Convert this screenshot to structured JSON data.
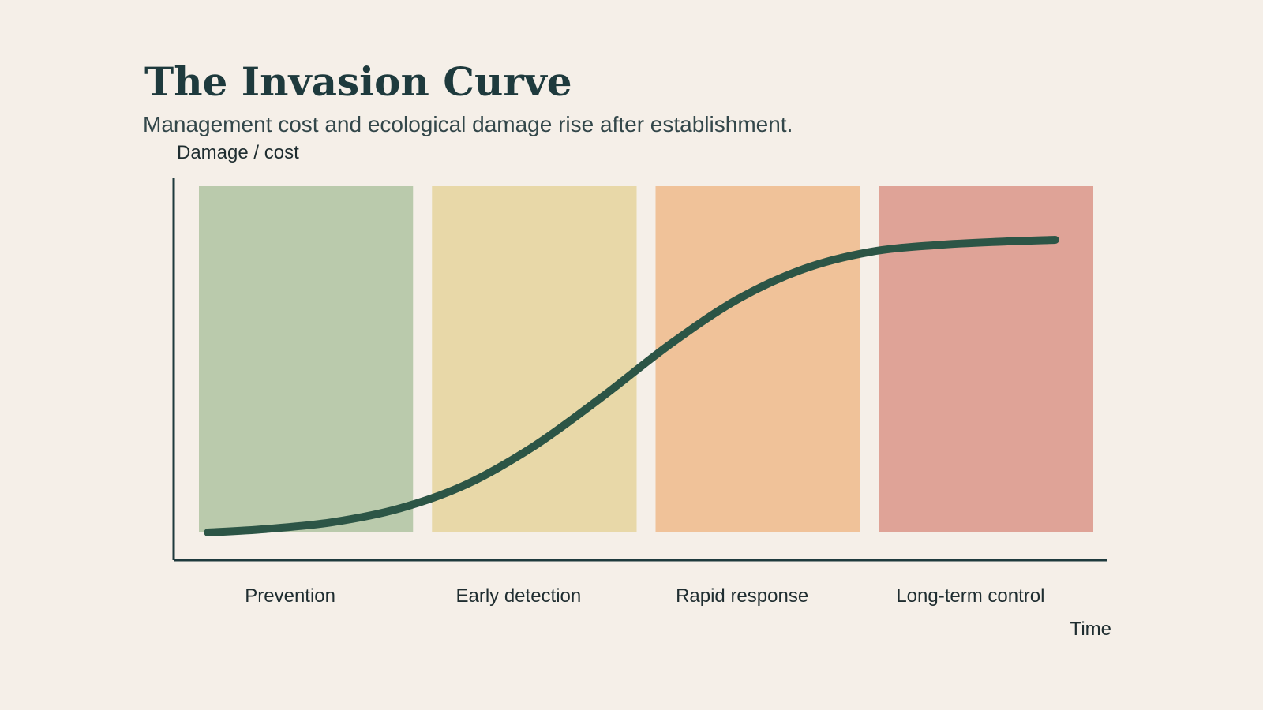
{
  "slide": {
    "title": "The Invasion Curve",
    "subtitle": "Management cost and ecological damage rise after establishment."
  },
  "chart_data": {
    "type": "line",
    "xlabel": "Time",
    "ylabel": "Damage / cost",
    "xlim": [
      0,
      4
    ],
    "ylim": [
      0,
      1
    ],
    "grid": false,
    "legend": "none",
    "bands": [
      {
        "label": "Prevention",
        "start": 0,
        "end": 1,
        "color": "#bacaac"
      },
      {
        "label": "Early detection",
        "start": 1,
        "end": 2,
        "color": "#e8d8a8"
      },
      {
        "label": "Rapid response",
        "start": 2,
        "end": 3,
        "color": "#f0c299"
      },
      {
        "label": "Long-term control",
        "start": 3,
        "end": 4,
        "color": "#dfa397"
      }
    ],
    "series": [
      {
        "color": "#2c5546",
        "x": [
          0.04,
          0.3,
          0.6,
          0.9,
          1.2,
          1.5,
          1.8,
          2.1,
          2.4,
          2.7,
          3.0,
          3.3,
          3.6,
          3.83
        ],
        "y": [
          0.0,
          0.01,
          0.03,
          0.07,
          0.14,
          0.25,
          0.39,
          0.54,
          0.67,
          0.76,
          0.81,
          0.83,
          0.84,
          0.845
        ]
      }
    ],
    "colors": {
      "axis": "#1e3a3d",
      "text": "#1f2d30"
    }
  }
}
